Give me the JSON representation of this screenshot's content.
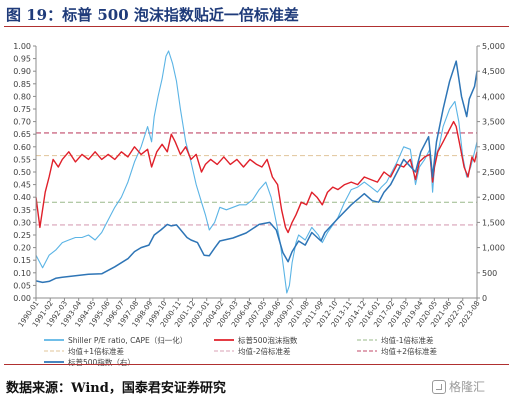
{
  "header": {
    "title": "图 19：标普 500 泡沫指数贴近一倍标准差"
  },
  "footer": {
    "source": "数据来源：Wind，国泰君安证券研究",
    "watermark": "格隆汇"
  },
  "colors": {
    "shiller": "#5bb4e5",
    "bubble": "#e0202a",
    "mean_minus1": "#9ab88a",
    "mean_plus1": "#e1c49a",
    "mean_minus2": "#d8a0b6",
    "mean_plus2": "#c04a6a",
    "sp500": "#2e75b6",
    "axis": "#8c8c8c",
    "text": "#404040"
  },
  "chart_data": {
    "type": "line",
    "left_axis": {
      "min": 0,
      "max": 1.0,
      "ticks": [
        "0.00",
        "0.05",
        "0.10",
        "0.15",
        "0.20",
        "0.25",
        "0.30",
        "0.35",
        "0.40",
        "0.45",
        "0.50",
        "0.55",
        "0.60",
        "0.65",
        "0.70",
        "0.75",
        "0.80",
        "0.85",
        "0.90",
        "0.95",
        "1.00"
      ]
    },
    "right_axis": {
      "min": 0,
      "max": 5000,
      "ticks": [
        "0",
        "500",
        "1,000",
        "1,500",
        "2,000",
        "2,500",
        "3,000",
        "3,500",
        "4,000",
        "4,500",
        "5,000"
      ]
    },
    "x_axis": {
      "min": 1990.0,
      "max": 2023.583,
      "labels": [
        "1990-01",
        "1991-02",
        "1992-03",
        "1993-04",
        "1994-05",
        "1995-06",
        "1996-07",
        "1997-08",
        "1998-09",
        "1999-10",
        "2000-11",
        "2001-12",
        "2003-01",
        "2004-02",
        "2005-03",
        "2006-04",
        "2007-05",
        "2008-06",
        "2009-07",
        "2010-08",
        "2011-09",
        "2012-10",
        "2013-11",
        "2014-12",
        "2016-01",
        "2017-02",
        "2018-03",
        "2019-04",
        "2020-05",
        "2021-06",
        "2022-07",
        "2023-08"
      ]
    },
    "reference_lines": [
      {
        "name": "均值-1倍标准差",
        "value": 0.38,
        "color_key": "mean_minus1"
      },
      {
        "name": "均值+1倍标准差",
        "value": 0.565,
        "color_key": "mean_plus1"
      },
      {
        "name": "均值-2倍标准差",
        "value": 0.29,
        "color_key": "mean_minus2"
      },
      {
        "name": "均值+2倍标准差",
        "value": 0.655,
        "color_key": "mean_plus2"
      }
    ],
    "series": [
      {
        "name": "Shiller P/E ratio, CAPE（归一化）",
        "axis": "left",
        "color_key": "shiller",
        "x": [
          1990.0,
          1990.5,
          1991.0,
          1991.5,
          1992.0,
          1992.5,
          1993.0,
          1993.5,
          1994.0,
          1994.5,
          1995.0,
          1995.5,
          1996.0,
          1996.5,
          1997.0,
          1997.5,
          1998.0,
          1998.5,
          1998.8,
          1999.0,
          1999.3,
          1999.6,
          1999.9,
          2000.1,
          2000.4,
          2000.7,
          2001.0,
          2001.4,
          2001.8,
          2002.2,
          2002.6,
          2002.9,
          2003.2,
          2003.6,
          2004.0,
          2004.5,
          2005.0,
          2005.5,
          2006.0,
          2006.5,
          2007.0,
          2007.5,
          2007.9,
          2008.3,
          2008.6,
          2008.9,
          2009.1,
          2009.3,
          2009.5,
          2009.8,
          2010.0,
          2010.5,
          2011.0,
          2011.5,
          2011.8,
          2012.2,
          2012.6,
          2013.0,
          2013.5,
          2014.0,
          2014.5,
          2015.0,
          2015.5,
          2016.0,
          2016.3,
          2016.7,
          2017.0,
          2017.5,
          2018.0,
          2018.5,
          2018.9,
          2019.2,
          2019.6,
          2020.0,
          2020.2,
          2020.4,
          2020.7,
          2021.0,
          2021.5,
          2021.9,
          2022.2,
          2022.5,
          2022.8,
          2023.1,
          2023.4,
          2023.58
        ],
        "y": [
          0.17,
          0.12,
          0.17,
          0.19,
          0.22,
          0.23,
          0.24,
          0.24,
          0.25,
          0.23,
          0.26,
          0.31,
          0.36,
          0.4,
          0.46,
          0.54,
          0.6,
          0.68,
          0.62,
          0.72,
          0.8,
          0.87,
          0.96,
          0.98,
          0.93,
          0.86,
          0.75,
          0.62,
          0.54,
          0.45,
          0.38,
          0.33,
          0.27,
          0.3,
          0.36,
          0.35,
          0.36,
          0.37,
          0.37,
          0.39,
          0.43,
          0.46,
          0.4,
          0.3,
          0.22,
          0.1,
          0.02,
          0.05,
          0.14,
          0.22,
          0.25,
          0.23,
          0.28,
          0.25,
          0.22,
          0.26,
          0.29,
          0.32,
          0.38,
          0.43,
          0.44,
          0.46,
          0.44,
          0.42,
          0.44,
          0.46,
          0.49,
          0.54,
          0.6,
          0.59,
          0.45,
          0.52,
          0.55,
          0.59,
          0.42,
          0.56,
          0.6,
          0.68,
          0.75,
          0.78,
          0.7,
          0.56,
          0.48,
          0.52,
          0.58,
          0.62
        ]
      },
      {
        "name": "标普500泡沫指数",
        "axis": "left",
        "color_key": "bubble",
        "x": [
          1990.0,
          1990.3,
          1990.7,
          1991.0,
          1991.3,
          1991.7,
          1992.0,
          1992.5,
          1993.0,
          1993.5,
          1994.0,
          1994.5,
          1995.0,
          1995.5,
          1996.0,
          1996.5,
          1997.0,
          1997.5,
          1998.0,
          1998.5,
          1998.8,
          1999.2,
          1999.6,
          2000.0,
          2000.3,
          2000.6,
          2001.0,
          2001.4,
          2001.8,
          2002.2,
          2002.6,
          2002.9,
          2003.3,
          2003.8,
          2004.3,
          2004.8,
          2005.3,
          2005.8,
          2006.3,
          2006.8,
          2007.2,
          2007.6,
          2008.0,
          2008.4,
          2008.7,
          2009.0,
          2009.2,
          2009.5,
          2009.8,
          2010.2,
          2010.6,
          2011.0,
          2011.4,
          2011.8,
          2012.2,
          2012.6,
          2013.0,
          2013.5,
          2014.0,
          2014.5,
          2015.0,
          2015.5,
          2016.0,
          2016.5,
          2017.0,
          2017.5,
          2018.0,
          2018.5,
          2018.9,
          2019.2,
          2019.6,
          2020.0,
          2020.2,
          2020.35,
          2020.6,
          2021.0,
          2021.4,
          2021.8,
          2022.0,
          2022.3,
          2022.6,
          2022.9,
          2023.2,
          2023.4,
          2023.58
        ],
        "y": [
          0.4,
          0.28,
          0.42,
          0.48,
          0.55,
          0.52,
          0.55,
          0.58,
          0.54,
          0.57,
          0.55,
          0.58,
          0.55,
          0.57,
          0.55,
          0.58,
          0.56,
          0.6,
          0.57,
          0.59,
          0.52,
          0.58,
          0.61,
          0.58,
          0.65,
          0.62,
          0.57,
          0.6,
          0.55,
          0.57,
          0.5,
          0.53,
          0.55,
          0.53,
          0.56,
          0.53,
          0.55,
          0.52,
          0.55,
          0.53,
          0.52,
          0.55,
          0.48,
          0.45,
          0.35,
          0.28,
          0.26,
          0.3,
          0.33,
          0.38,
          0.37,
          0.42,
          0.4,
          0.37,
          0.42,
          0.44,
          0.43,
          0.45,
          0.46,
          0.45,
          0.48,
          0.47,
          0.46,
          0.5,
          0.48,
          0.53,
          0.52,
          0.55,
          0.47,
          0.54,
          0.56,
          0.57,
          0.46,
          0.52,
          0.58,
          0.62,
          0.66,
          0.7,
          0.68,
          0.6,
          0.52,
          0.48,
          0.56,
          0.54,
          0.58
        ]
      },
      {
        "name": "标普500指数（右）",
        "axis": "right",
        "color_key": "sp500",
        "x": [
          1990.0,
          1990.5,
          1991.0,
          1991.5,
          1992.0,
          1993.0,
          1994.0,
          1995.0,
          1996.0,
          1997.0,
          1997.5,
          1998.0,
          1998.6,
          1999.0,
          1999.5,
          2000.0,
          2000.3,
          2000.7,
          2001.0,
          2001.5,
          2001.8,
          2002.3,
          2002.8,
          2003.2,
          2003.6,
          2004.0,
          2005.0,
          2006.0,
          2007.0,
          2007.8,
          2008.3,
          2008.8,
          2009.2,
          2009.5,
          2010.0,
          2010.5,
          2011.0,
          2011.7,
          2012.0,
          2013.0,
          2014.0,
          2015.0,
          2015.6,
          2016.1,
          2016.5,
          2017.0,
          2018.0,
          2018.9,
          2019.3,
          2019.9,
          2020.2,
          2020.5,
          2021.0,
          2021.5,
          2022.0,
          2022.4,
          2022.8,
          2023.0,
          2023.4,
          2023.58
        ],
        "y": [
          340,
          310,
          330,
          390,
          410,
          440,
          470,
          480,
          620,
          780,
          920,
          1000,
          1050,
          1250,
          1350,
          1460,
          1430,
          1450,
          1360,
          1200,
          1150,
          1100,
          850,
          840,
          990,
          1130,
          1190,
          1290,
          1460,
          1500,
          1350,
          900,
          720,
          920,
          1130,
          1050,
          1300,
          1130,
          1300,
          1580,
          1850,
          2070,
          1930,
          1900,
          2100,
          2250,
          2750,
          2500,
          2900,
          3200,
          2400,
          3100,
          3750,
          4300,
          4700,
          4000,
          3600,
          3950,
          4200,
          4500
        ]
      }
    ],
    "legend": [
      {
        "label": "Shiller P/E ratio, CAPE（归一化）",
        "color_key": "shiller",
        "style": "solid"
      },
      {
        "label": "标普500泡沫指数",
        "color_key": "bubble",
        "style": "solid"
      },
      {
        "label": "均值-1倍标准差",
        "color_key": "mean_minus1",
        "style": "dashed"
      },
      {
        "label": "均值+1倍标准差",
        "color_key": "mean_plus1",
        "style": "dashed"
      },
      {
        "label": "均值-2倍标准差",
        "color_key": "mean_minus2",
        "style": "dashed"
      },
      {
        "label": "均值+2倍标准差",
        "color_key": "mean_plus2",
        "style": "dashed"
      },
      {
        "label": "标普500指数（右）",
        "color_key": "sp500",
        "style": "solid"
      }
    ]
  }
}
